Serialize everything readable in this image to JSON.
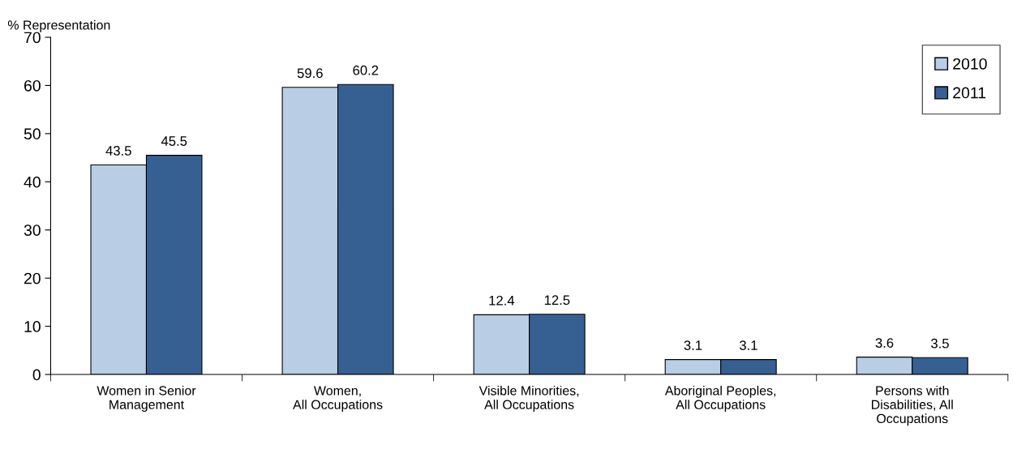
{
  "chart_data": {
    "type": "bar",
    "ylabel": "% Representation",
    "categories": [
      "Women in Senior\nManagement",
      "Women,\nAll Occupations",
      "Visible Minorities,\nAll Occupations",
      "Aboriginal Peoples,\nAll Occupations",
      "Persons with\nDisabilities, All\nOccupations"
    ],
    "series": [
      {
        "name": "2010",
        "color": "#b9cde5",
        "values": [
          43.5,
          59.6,
          12.4,
          3.1,
          3.6
        ]
      },
      {
        "name": "2011",
        "color": "#376092",
        "values": [
          45.5,
          60.2,
          12.5,
          3.1,
          3.5
        ]
      }
    ],
    "ylim": [
      0,
      70
    ],
    "yticks": [
      0,
      10,
      20,
      30,
      40,
      50,
      60,
      70
    ],
    "data_labels": true,
    "legend": "top right",
    "grid": false
  }
}
